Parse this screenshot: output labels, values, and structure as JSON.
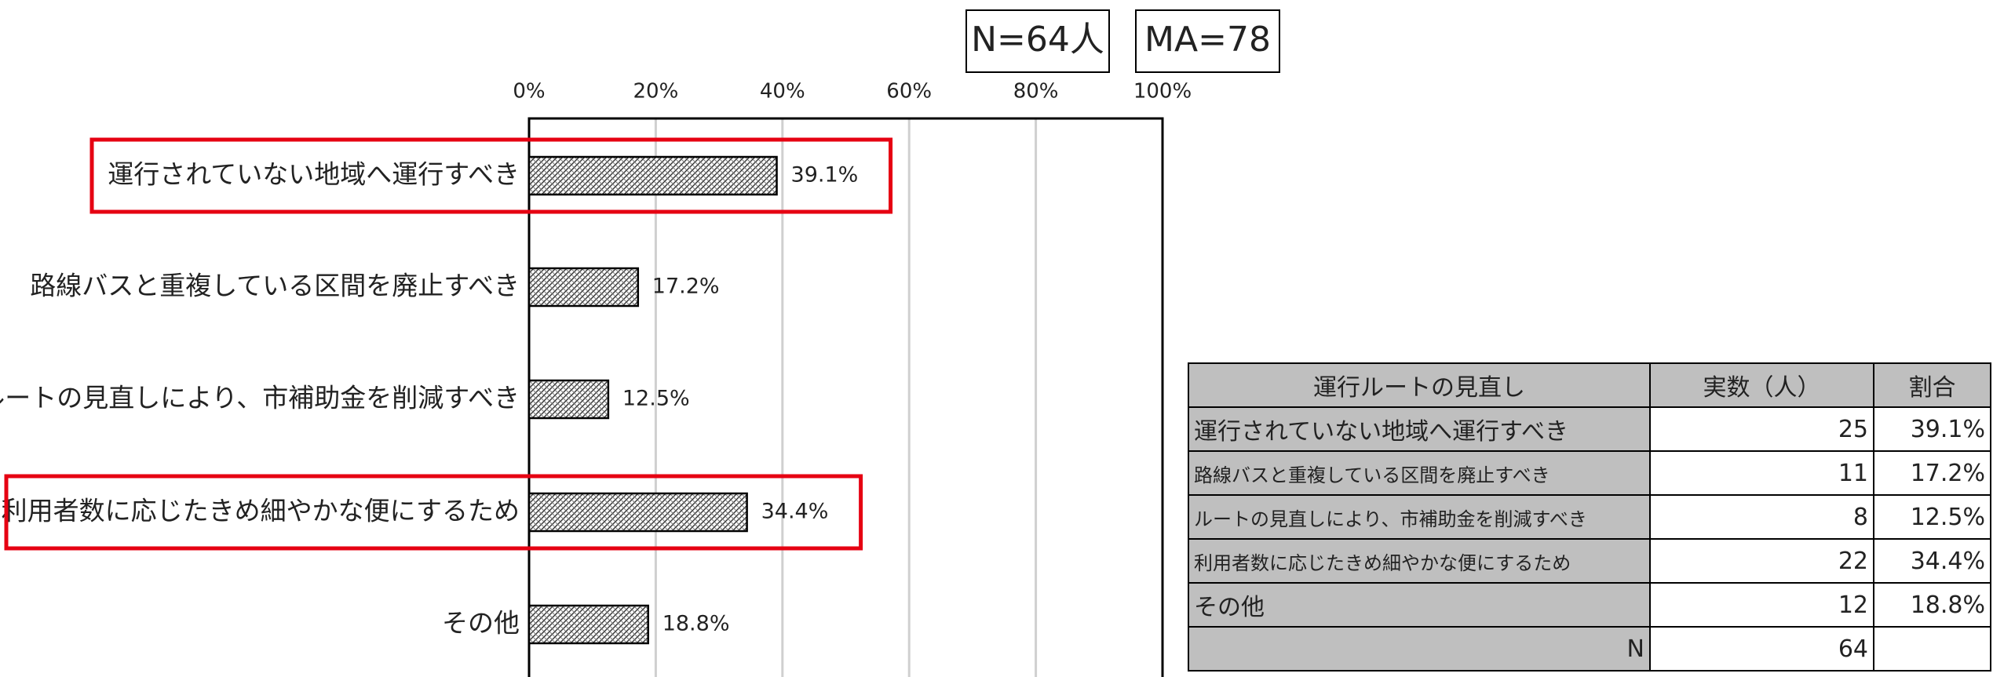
{
  "chart_data": {
    "type": "bar",
    "orientation": "horizontal",
    "categories": [
      "運行されていない地域へ運行すべき",
      "路線バスと重複している区間を廃止すべき",
      "ルートの見直しにより、市補助金を削減すべき",
      "利用者数に応じたきめ細やかな便にするため",
      "その他"
    ],
    "values": [
      39.1,
      17.2,
      12.5,
      34.4,
      18.8
    ],
    "value_labels": [
      "39.1%",
      "17.2%",
      "12.5%",
      "34.4%",
      "18.8%"
    ],
    "xlim": [
      0,
      100
    ],
    "xticks": [
      {
        "value": 0,
        "label": "0%"
      },
      {
        "value": 20,
        "label": "20%"
      },
      {
        "value": 40,
        "label": "40%"
      },
      {
        "value": 60,
        "label": "60%"
      },
      {
        "value": 80,
        "label": "80%"
      },
      {
        "value": 100,
        "label": "100%"
      }
    ],
    "grid": true,
    "highlight": [
      0,
      3
    ],
    "annotations": [
      "N=64人",
      "MA=78"
    ]
  },
  "table": {
    "header": [
      "運行ルートの見直し",
      "実数（人）",
      "割合"
    ],
    "rows": [
      [
        "運行されていない地域へ運行すべき",
        25,
        "39.1%"
      ],
      [
        "路線バスと重複している区間を廃止すべき",
        11,
        "17.2%"
      ],
      [
        "ルートの見直しにより、市補助金を削減すべき",
        8,
        "12.5%"
      ],
      [
        "利用者数に応じたきめ細やかな便にするため",
        22,
        "34.4%"
      ],
      [
        "その他",
        12,
        "18.8%"
      ],
      [
        "N",
        64
      ]
    ]
  }
}
